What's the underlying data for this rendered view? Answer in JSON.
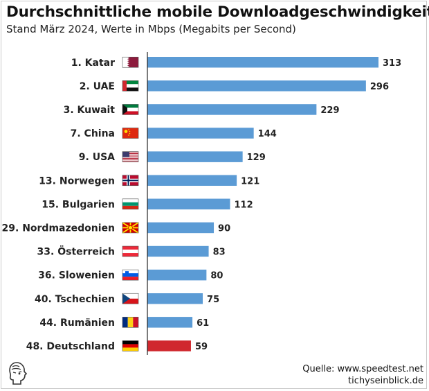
{
  "header": {
    "title": "Durchschnittliche mobile Downloadgeschwindigkeit",
    "subtitle": "Stand März 2024, Werte in Mbps (Megabits per Second)"
  },
  "footer": {
    "source_line": "Quelle: www.speedtest.net",
    "brand_line": "tichyseinblick.de"
  },
  "colors": {
    "bar": "#5b9bd5",
    "highlight_bar": "#d0282e",
    "axis": "#222222"
  },
  "chart_data": {
    "type": "bar",
    "orientation": "horizontal",
    "categories": [
      "1. Katar",
      "2. UAE",
      "3. Kuwait",
      "7. China",
      "9. USA",
      "13. Norwegen",
      "15. Bulgarien",
      "29. Nordmazedonien",
      "33. Österreich",
      "36. Slowenien",
      "40. Tschechien",
      "44. Rumänien",
      "48. Deutschland"
    ],
    "values": [
      313,
      296,
      229,
      144,
      129,
      121,
      112,
      90,
      83,
      80,
      75,
      61,
      59
    ],
    "flags": [
      "qatar",
      "uae",
      "kuwait",
      "china",
      "usa",
      "norway",
      "bulgaria",
      "north-macedonia",
      "austria",
      "slovenia",
      "czechia",
      "romania",
      "germany"
    ],
    "highlight": "48. Deutschland",
    "xlim": [
      0,
      313
    ],
    "grid": false,
    "legend": "none"
  }
}
